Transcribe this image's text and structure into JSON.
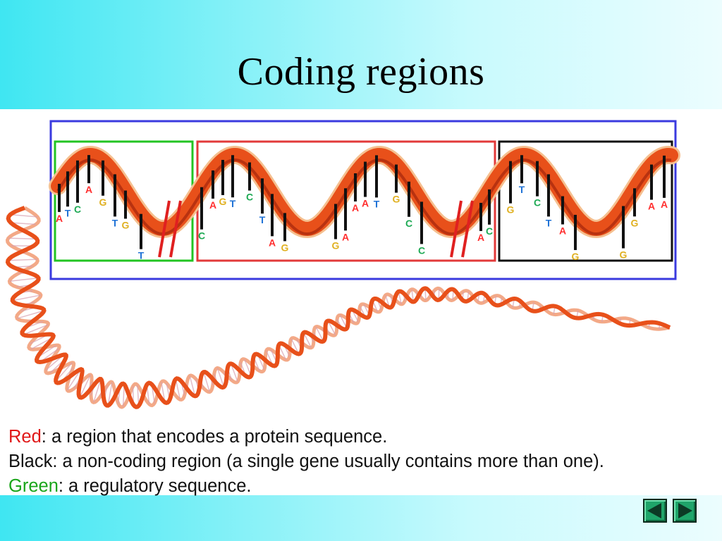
{
  "slide": {
    "title": "Coding regions"
  },
  "diagram": {
    "box_colors": {
      "outer": "#3a3adf",
      "regulatory": "#22c422",
      "coding": "#e23a3a",
      "non_coding": "#111111"
    },
    "helix_color": "#e8501a",
    "base_colors": {
      "A": "#ff3030",
      "T": "#1f72d6",
      "C": "#1faa55",
      "G": "#e0b020"
    },
    "bases": [
      {
        "letter": "A"
      },
      {
        "letter": "T"
      },
      {
        "letter": "C"
      },
      {
        "letter": "A"
      },
      {
        "letter": "G"
      },
      {
        "letter": "T"
      },
      {
        "letter": "G"
      },
      {
        "letter": "T"
      },
      {
        "letter": "C"
      },
      {
        "letter": "A"
      },
      {
        "letter": "G"
      },
      {
        "letter": "T"
      },
      {
        "letter": "C"
      },
      {
        "letter": "T"
      },
      {
        "letter": "A"
      },
      {
        "letter": "G"
      },
      {
        "letter": "G"
      },
      {
        "letter": "A"
      },
      {
        "letter": "A"
      },
      {
        "letter": "A"
      },
      {
        "letter": "T"
      },
      {
        "letter": "G"
      },
      {
        "letter": "C"
      },
      {
        "letter": "C"
      },
      {
        "letter": "A"
      },
      {
        "letter": "C"
      },
      {
        "letter": "G"
      },
      {
        "letter": "T"
      },
      {
        "letter": "C"
      },
      {
        "letter": "T"
      },
      {
        "letter": "A"
      },
      {
        "letter": "G"
      },
      {
        "letter": "G"
      },
      {
        "letter": "G"
      },
      {
        "letter": "A"
      },
      {
        "letter": "A"
      }
    ]
  },
  "legend": {
    "red_key": "Red",
    "red_text": ": a region that encodes a protein sequence.",
    "black_key": "Black",
    "black_text": ": a non-coding region (a single gene usually contains more than one).",
    "green_key": "Green",
    "green_text": ": a regulatory sequence."
  },
  "nav": {
    "prev_icon": "triangle-left-icon",
    "next_icon": "triangle-right-icon"
  }
}
